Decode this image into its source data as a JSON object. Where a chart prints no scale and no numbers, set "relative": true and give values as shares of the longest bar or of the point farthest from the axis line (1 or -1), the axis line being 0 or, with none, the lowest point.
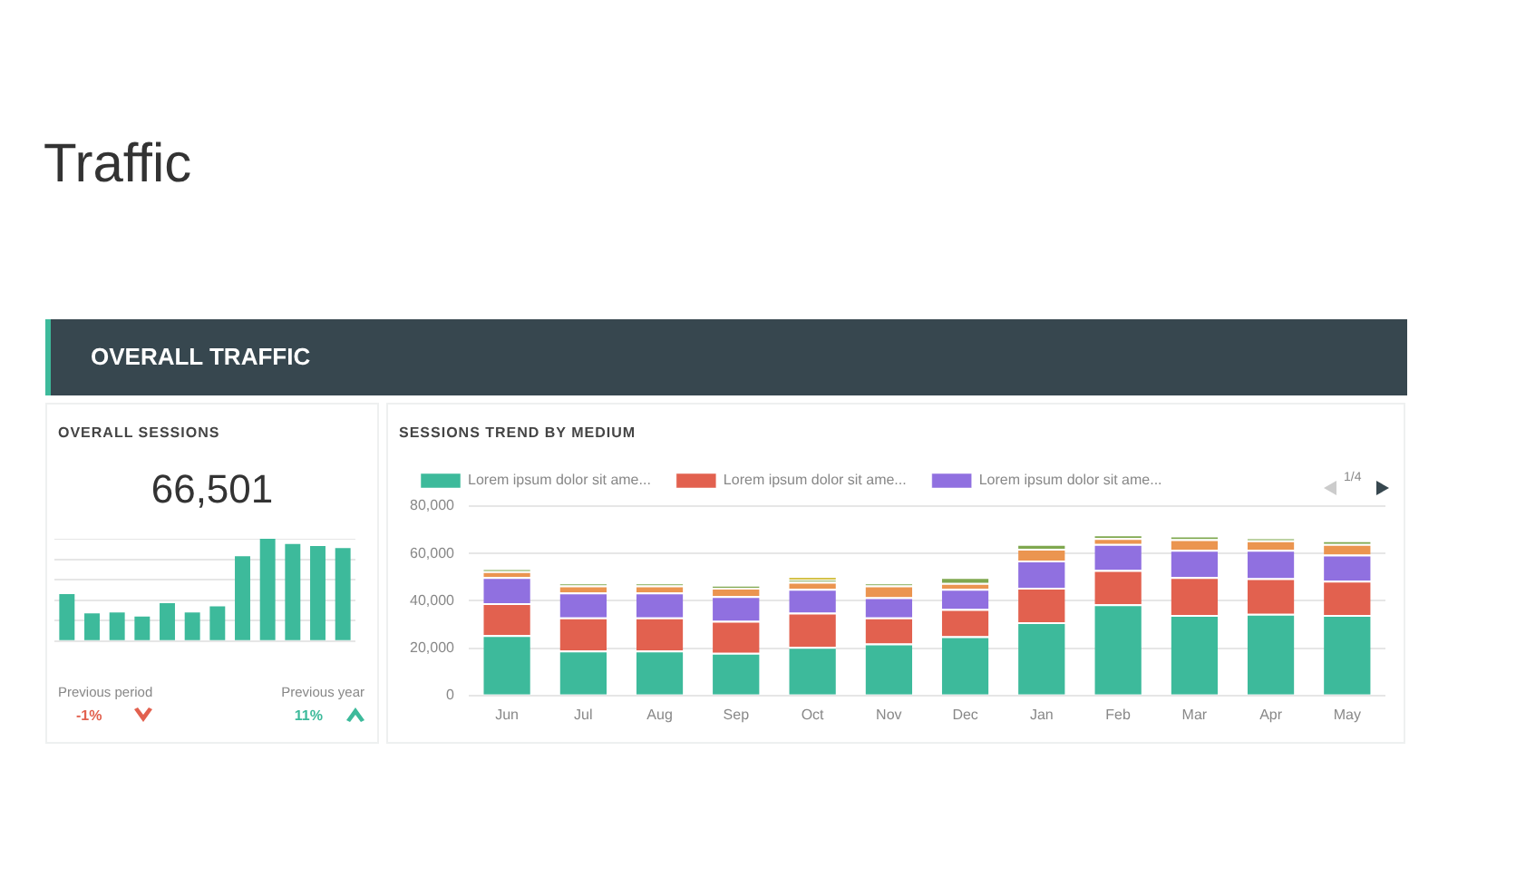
{
  "chart_data": [
    {
      "type": "bar",
      "title": "OVERALL SESSIONS",
      "relative": true,
      "grid": "y",
      "legend": false,
      "categories": [
        null,
        null,
        null,
        null,
        null,
        null,
        null,
        null,
        null,
        null,
        null,
        null
      ],
      "series": [
        {
          "color": "#3dba9b",
          "values": [
            0.46,
            0.27,
            0.28,
            0.24,
            0.37,
            0.28,
            0.34,
            0.83,
            1,
            0.95,
            0.93,
            0.91
          ]
        }
      ],
      "annotations": [
        "Traffic",
        "OVERALL TRAFFIC",
        "66,501",
        "Previous period",
        "-1%",
        "Previous year",
        "11%"
      ]
    },
    {
      "type": "bar",
      "title": "SESSIONS TREND BY MEDIUM",
      "stacked": true,
      "grid": "y",
      "legend": "top",
      "categories": [
        "Jun",
        "Jul",
        "Aug",
        "Sep",
        "Oct",
        "Nov",
        "Dec",
        "Jan",
        "Feb",
        "Mar",
        "Apr",
        "May"
      ],
      "ylim": [
        0,
        80000
      ],
      "yticks": [
        0,
        {
          "value": 20000,
          "label": "20,000"
        },
        {
          "value": 40000,
          "label": "40,000"
        },
        {
          "value": 60000,
          "label": "60,000"
        },
        {
          "value": 80000,
          "label": "80,000"
        }
      ],
      "series": [
        {
          "name": "Lorem ipsum dolor sit ame...",
          "color": "#3dba9b",
          "values": [
            25500,
            19000,
            19000,
            18000,
            20500,
            22000,
            25000,
            31000,
            38500,
            34000,
            34500,
            34000
          ]
        },
        {
          "name": "Lorem ipsum dolor sit ame...",
          "color": "#e2614f",
          "values": [
            13500,
            14000,
            14000,
            13500,
            14500,
            11000,
            11500,
            14500,
            14500,
            16000,
            15000,
            14500
          ]
        },
        {
          "name": "Lorem ipsum dolor sit ame...",
          "color": "#9070e0",
          "values": [
            11000,
            10500,
            10500,
            10500,
            10000,
            8500,
            8500,
            11500,
            11000,
            11500,
            12000,
            11000
          ]
        },
        {
          "color": "#eb9550",
          "values": [
            2500,
            3000,
            3000,
            3500,
            3000,
            5000,
            2500,
            5000,
            2500,
            4500,
            4000,
            4500
          ]
        },
        {
          "color": "#7fa84f",
          "values": [
            1000,
            1000,
            1000,
            1000,
            1000,
            1000,
            2500,
            2000,
            1500,
            1500,
            1000,
            1500
          ]
        },
        {
          "color": "#d4c24a",
          "values": [
            null,
            null,
            null,
            null,
            1500,
            null,
            null,
            null,
            null,
            null,
            null,
            null
          ]
        }
      ],
      "annotations": [
        "1/4"
      ]
    }
  ]
}
